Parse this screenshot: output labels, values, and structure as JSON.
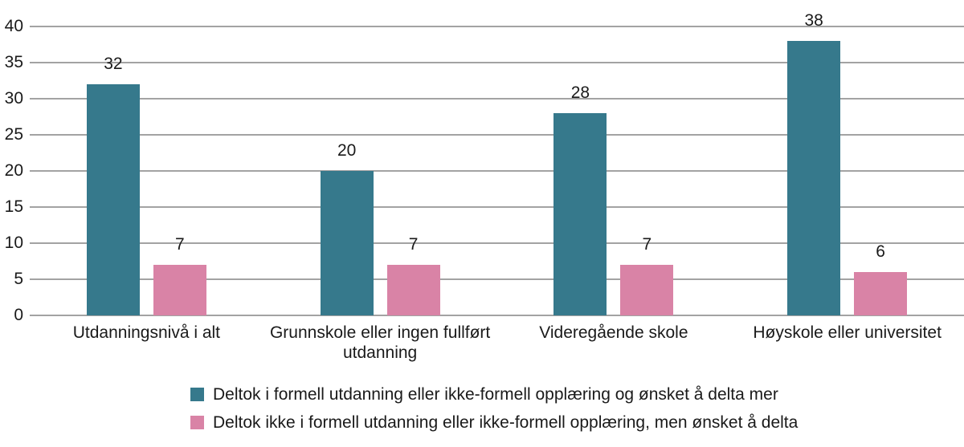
{
  "chart": {
    "background_color": "#ffffff",
    "text_color": "#1a1a1a",
    "gridline_color": "#a3a3a3"
  },
  "chart_data": {
    "type": "bar",
    "title": "",
    "xlabel": "",
    "ylabel": "",
    "categories": [
      "Utdanningsnivå i alt",
      "Grunnskole eller ingen fullført utdanning",
      "Videregående skole",
      "Høyskole eller universitet"
    ],
    "series": [
      {
        "name": "Deltok i formell utdanning eller ikke-formell opplæring og ønsket å delta mer",
        "color": "#36798c",
        "values": [
          32,
          20,
          28,
          38
        ]
      },
      {
        "name": "Deltok ikke i formell utdanning eller ikke-formell opplæring, men ønsket å delta",
        "color": "#d983a6",
        "values": [
          7,
          7,
          7,
          6
        ]
      }
    ],
    "ylim": [
      0,
      40
    ],
    "y_ticks": [
      0,
      5,
      10,
      15,
      20,
      25,
      30,
      35,
      40
    ],
    "grid": true,
    "legend_position": "bottom",
    "value_labels_shown": true
  }
}
